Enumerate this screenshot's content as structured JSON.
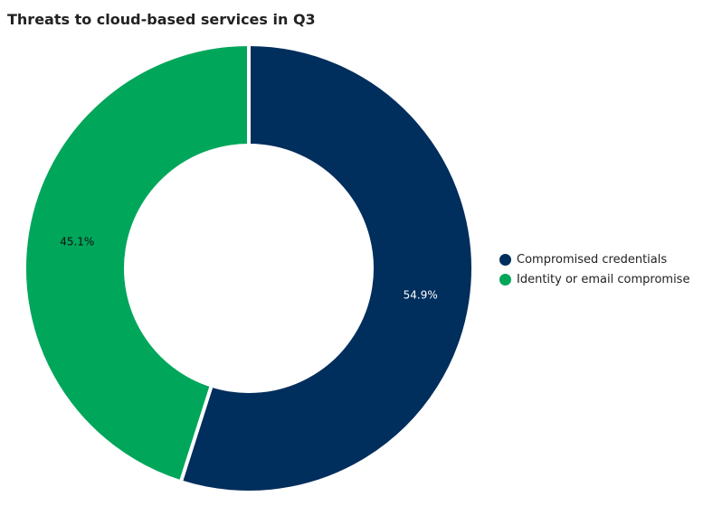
{
  "chart_data": {
    "type": "pie",
    "donut": true,
    "title": "Threats to cloud-based services in Q3",
    "series": [
      {
        "name": "Compromised credentials",
        "value": 54.9,
        "label": "54.9%",
        "color": "#002e5d",
        "label_color": "#ffffff"
      },
      {
        "name": "Identity or email compromise",
        "value": 45.1,
        "label": "45.1%",
        "color": "#00a65a",
        "label_color": "#111111"
      }
    ],
    "legend_position": "right"
  }
}
